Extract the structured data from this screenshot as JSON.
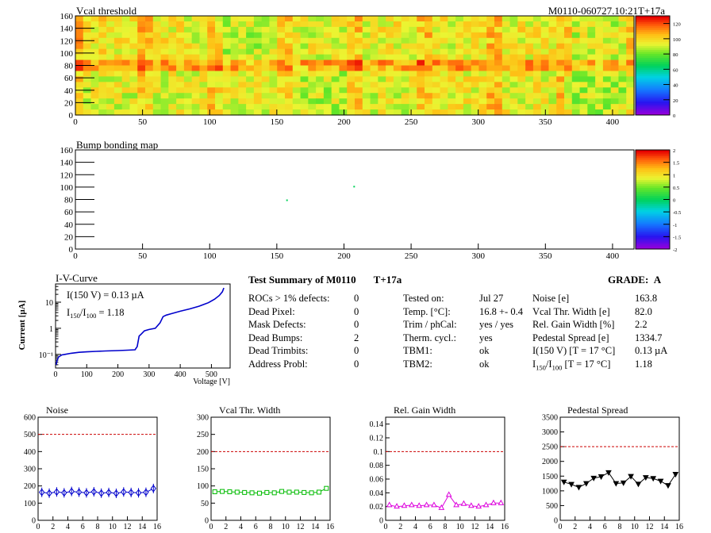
{
  "header": {
    "title": "Vcal threshold",
    "run_label": "M0110-060727.10:21T+17a"
  },
  "colors": {
    "dashed_ref": "#cc0000",
    "noise": "#0000cc",
    "vcal": "#00bb00",
    "gain": "#dd00dd",
    "pedestal": "#000000",
    "iv_curve": "#0000cc"
  },
  "chart_data": [
    {
      "id": "vcal-threshold-map",
      "type": "heatmap",
      "title": "Vcal threshold",
      "x_ticks": [
        0,
        50,
        100,
        150,
        200,
        250,
        300,
        350,
        400
      ],
      "y_ticks": [
        0,
        20,
        40,
        60,
        80,
        100,
        120,
        140,
        160
      ],
      "xlim": [
        0,
        416
      ],
      "ylim": [
        0,
        160
      ],
      "z_ticks": [
        0,
        20,
        40,
        60,
        80,
        100,
        120
      ],
      "zlim": [
        0,
        130
      ],
      "roc_columns": 8,
      "roc_rows": 2,
      "roc_mean_values": [
        [
          98,
          96,
          90,
          94,
          96,
          96,
          97,
          92
        ],
        [
          94,
          95,
          94,
          90,
          94,
          96,
          96,
          89
        ]
      ]
    },
    {
      "id": "bump-bonding-map",
      "type": "heatmap",
      "title": "Bump bonding map",
      "x_ticks": [
        0,
        50,
        100,
        150,
        200,
        250,
        300,
        350,
        400
      ],
      "y_ticks": [
        0,
        20,
        40,
        60,
        80,
        100,
        120,
        140,
        160
      ],
      "xlim": [
        0,
        416
      ],
      "ylim": [
        0,
        160
      ],
      "z_ticks": [
        -2,
        -1.5,
        -1,
        -0.5,
        0,
        0.5,
        1,
        1.5,
        2
      ],
      "zlim": [
        -2,
        2
      ],
      "points": [
        {
          "x": 157,
          "y": 80,
          "z": 0
        },
        {
          "x": 207,
          "y": 102,
          "z": 0
        }
      ]
    },
    {
      "id": "iv-curve",
      "type": "line",
      "title": "I-V-Curve",
      "xlabel": "Voltage [V]",
      "ylabel": "Current [µA]",
      "log_y": true,
      "x_ticks": [
        0,
        100,
        200,
        300,
        400,
        500
      ],
      "xlim": [
        0,
        560
      ],
      "ylim": [
        0.03,
        50
      ],
      "y_tick_labels": [
        "10⁻¹",
        "1",
        "10"
      ],
      "annotation_1": "I(150 V) = 0.13 µA",
      "annotation_2_prefix": "I",
      "annotation_2_sub1": "150",
      "annotation_2_mid": "/I",
      "annotation_2_sub2": "100",
      "annotation_2_suffix": " =  1.18",
      "x": [
        2,
        5,
        10,
        20,
        30,
        50,
        75,
        100,
        130,
        160,
        200,
        230,
        255,
        262,
        268,
        275,
        285,
        300,
        320,
        335,
        345,
        355,
        370,
        400,
        430,
        460,
        490,
        510,
        525,
        535,
        540
      ],
      "y": [
        0.04,
        0.06,
        0.08,
        0.095,
        0.1,
        0.11,
        0.12,
        0.125,
        0.13,
        0.135,
        0.14,
        0.145,
        0.15,
        0.2,
        0.5,
        0.6,
        0.8,
        0.9,
        1.0,
        1.6,
        2.8,
        3.2,
        3.6,
        4.5,
        5.5,
        7.0,
        9.5,
        13,
        18,
        25,
        35
      ]
    },
    {
      "id": "noise-plot",
      "type": "line",
      "title": "Noise",
      "x_ticks": [
        0,
        2,
        4,
        6,
        8,
        10,
        12,
        14,
        16
      ],
      "y_ticks": [
        0,
        100,
        200,
        300,
        400,
        500,
        600
      ],
      "xlim": [
        0,
        16
      ],
      "ylim": [
        0,
        600
      ],
      "reference": 500,
      "x": [
        0.5,
        1.5,
        2.5,
        3.5,
        4.5,
        5.5,
        6.5,
        7.5,
        8.5,
        9.5,
        10.5,
        11.5,
        12.5,
        13.5,
        14.5,
        15.5
      ],
      "y": [
        163,
        158,
        165,
        160,
        168,
        164,
        160,
        166,
        158,
        162,
        157,
        165,
        162,
        160,
        163,
        185
      ]
    },
    {
      "id": "vcal-width-plot",
      "type": "line",
      "title": "Vcal Thr. Width",
      "x_ticks": [
        0,
        2,
        4,
        6,
        8,
        10,
        12,
        14,
        16
      ],
      "y_ticks": [
        0,
        50,
        100,
        150,
        200,
        250,
        300
      ],
      "xlim": [
        0,
        16
      ],
      "ylim": [
        0,
        300
      ],
      "reference": 200,
      "x": [
        0.5,
        1.5,
        2.5,
        3.5,
        4.5,
        5.5,
        6.5,
        7.5,
        8.5,
        9.5,
        10.5,
        11.5,
        12.5,
        13.5,
        14.5,
        15.5
      ],
      "y": [
        83,
        84,
        83,
        82,
        81,
        80,
        79,
        81,
        80,
        84,
        82,
        82,
        81,
        80,
        82,
        93
      ]
    },
    {
      "id": "gain-width-plot",
      "type": "line",
      "title": "Rel. Gain Width",
      "x_ticks": [
        0,
        2,
        4,
        6,
        8,
        10,
        12,
        14,
        16
      ],
      "y_ticks": [
        0,
        0.02,
        0.04,
        0.06,
        0.08,
        0.1,
        0.12,
        0.14
      ],
      "xlim": [
        0,
        16
      ],
      "ylim": [
        0,
        0.15
      ],
      "reference": 0.1,
      "x": [
        0.5,
        1.5,
        2.5,
        3.5,
        4.5,
        5.5,
        6.5,
        7.5,
        8.5,
        9.5,
        10.5,
        11.5,
        12.5,
        13.5,
        14.5,
        15.5
      ],
      "y": [
        0.022,
        0.02,
        0.021,
        0.022,
        0.021,
        0.022,
        0.022,
        0.018,
        0.037,
        0.022,
        0.024,
        0.021,
        0.02,
        0.022,
        0.025,
        0.025
      ]
    },
    {
      "id": "pedestal-spread-plot",
      "type": "line",
      "title": "Pedestal Spread",
      "x_ticks": [
        0,
        2,
        4,
        6,
        8,
        10,
        12,
        14,
        16
      ],
      "y_ticks": [
        0,
        500,
        1000,
        1500,
        2000,
        2500,
        3000,
        3500
      ],
      "xlim": [
        0,
        16
      ],
      "ylim": [
        0,
        3500
      ],
      "reference": 2500,
      "x": [
        0.5,
        1.5,
        2.5,
        3.5,
        4.5,
        5.5,
        6.5,
        7.5,
        8.5,
        9.5,
        10.5,
        11.5,
        12.5,
        13.5,
        14.5,
        15.5
      ],
      "y": [
        1300,
        1220,
        1120,
        1250,
        1430,
        1480,
        1620,
        1250,
        1270,
        1490,
        1230,
        1450,
        1420,
        1330,
        1180,
        1560
      ]
    }
  ],
  "summary": {
    "title": "Test Summary of M0110",
    "temp_tag": "T+17a",
    "grade_label": "GRADE:",
    "grade": "A",
    "defects": [
      {
        "label": "ROCs > 1% defects:",
        "value": "0"
      },
      {
        "label": "Dead Pixel:",
        "value": "0"
      },
      {
        "label": "Mask Defects:",
        "value": "0"
      },
      {
        "label": "Dead Bumps:",
        "value": "2"
      },
      {
        "label": "Dead Trimbits:",
        "value": "0"
      },
      {
        "label": "Address Probl:",
        "value": "0"
      }
    ],
    "conditions": [
      {
        "label": "Tested on:",
        "value": "Jul 27"
      },
      {
        "label": "Temp. [°C]:",
        "value": "16.8 +- 0.4"
      },
      {
        "label": "Trim / phCal:",
        "value": "yes / yes"
      },
      {
        "label": "Therm. cycl.:",
        "value": "yes"
      },
      {
        "label": "TBM1:",
        "value": "ok"
      },
      {
        "label": "TBM2:",
        "value": "ok"
      }
    ],
    "results": [
      {
        "label": "Noise [e]",
        "value": "163.8"
      },
      {
        "label": "Vcal Thr. Width [e]",
        "value": "82.0"
      },
      {
        "label": "Rel. Gain Width [%]",
        "value": "2.2"
      },
      {
        "label": "Pedestal Spread [e]",
        "value": "1334.7"
      },
      {
        "label": "I(150 V) [T = 17 °C]",
        "value": "0.13 µA"
      }
    ],
    "ratio_row": {
      "prefix": "I",
      "sub1": "150",
      "mid": "/I",
      "sub2": "100",
      "suffix": "   [T = 17 °C]",
      "value": "1.18"
    }
  }
}
